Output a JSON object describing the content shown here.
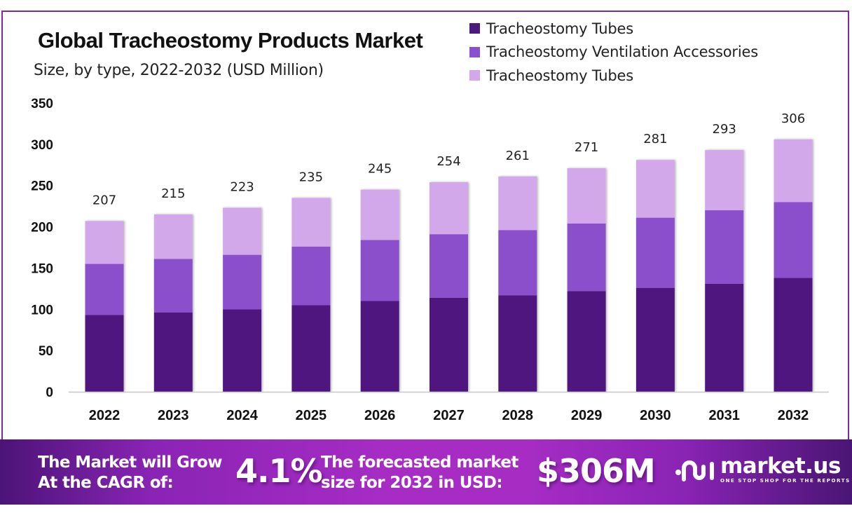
{
  "header": {
    "title": "Global Tracheostomy Products Market",
    "subtitle": "Size, by type, 2022-2032 (USD Million)"
  },
  "legend": [
    {
      "label": "Tracheostomy Tubes",
      "color": "#4f1780"
    },
    {
      "label": "Tracheostomy Ventilation Accessories",
      "color": "#8b50cc"
    },
    {
      "label": "Tracheostomy Tubes",
      "color": "#d3a8eb"
    }
  ],
  "chart_data": {
    "type": "bar",
    "stacked": true,
    "title": "Global Tracheostomy Products Market",
    "subtitle": "Size, by type, 2022-2032 (USD Million)",
    "xlabel": "",
    "ylabel": "",
    "categories": [
      "2022",
      "2023",
      "2024",
      "2025",
      "2026",
      "2027",
      "2028",
      "2029",
      "2030",
      "2031",
      "2032"
    ],
    "series": [
      {
        "name": "Tracheostomy Tubes",
        "color": "#4f1780",
        "values": [
          93,
          96,
          100,
          105,
          110,
          114,
          117,
          122,
          126,
          131,
          138
        ]
      },
      {
        "name": "Tracheostomy Ventilation Accessories",
        "color": "#8b50cc",
        "values": [
          62,
          65,
          66,
          71,
          74,
          77,
          79,
          82,
          85,
          89,
          92
        ]
      },
      {
        "name": "Tracheostomy Tubes",
        "color": "#d3a8eb",
        "values": [
          52,
          54,
          57,
          59,
          61,
          63,
          65,
          67,
          70,
          73,
          76
        ]
      }
    ],
    "totals": [
      207,
      215,
      223,
      235,
      245,
      254,
      261,
      271,
      281,
      293,
      306
    ],
    "total_labels": [
      "207",
      "215",
      "223",
      "235",
      "245",
      "254",
      "261",
      "271",
      "281",
      "293",
      "306"
    ],
    "ylim": [
      0,
      350
    ],
    "yticks": [
      0,
      50,
      100,
      150,
      200,
      250,
      300,
      350
    ],
    "grid": false,
    "legend_position": "top-right"
  },
  "banner": {
    "cagr_text_line1": "The Market will Grow",
    "cagr_text_line2": "At the CAGR of:",
    "cagr_value": "4.1%",
    "forecast_text_line1": "The forecasted market",
    "forecast_text_line2": "size for 2032 in USD:",
    "forecast_value": "$306M",
    "logo_name": "market.us",
    "logo_tagline": "ONE STOP SHOP FOR THE REPORTS",
    "logo_icon": "market-us-logo-icon"
  }
}
